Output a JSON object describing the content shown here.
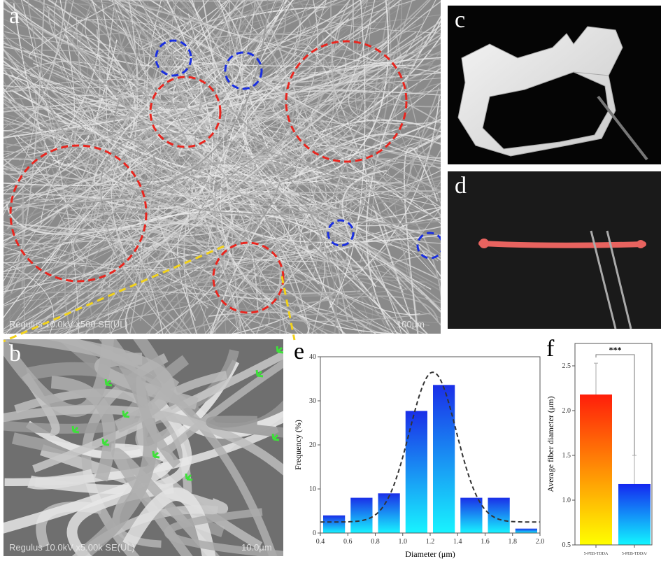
{
  "panels": {
    "a": {
      "label": "a",
      "footer": "Regulus 10.0kV x500 SE(UL)",
      "scale": "100μm"
    },
    "b": {
      "label": "b",
      "footer": "Regulus 10.0kV x5.00k SE(UL)",
      "scale": "10.0μm"
    },
    "c": {
      "label": "c"
    },
    "d": {
      "label": "d"
    },
    "e": {
      "label": "e"
    },
    "f": {
      "label": "f"
    }
  },
  "colors": {
    "red_circle": "#e8261f",
    "blue_circle": "#1a2fe0",
    "zoom_lines": "#f2d21b",
    "arrows": "#3ee03a"
  },
  "chart_data": [
    {
      "type": "bar",
      "panel": "e",
      "xlabel": "Diameter (μm)",
      "ylabel": "Frequency (%)",
      "bins": [
        [
          0.4,
          0.6
        ],
        [
          0.6,
          0.8
        ],
        [
          0.8,
          1.0
        ],
        [
          1.0,
          1.2
        ],
        [
          1.2,
          1.4
        ],
        [
          1.4,
          1.6
        ],
        [
          1.6,
          1.8
        ],
        [
          1.8,
          2.0
        ]
      ],
      "values": [
        4,
        8,
        9,
        27.7,
        33.6,
        8,
        8,
        1
      ],
      "fit": {
        "type": "gaussian",
        "center": 1.22,
        "peak": 36.5,
        "sigma": 0.17,
        "baseline": 2.5,
        "style": "dashed"
      },
      "xlim": [
        0.4,
        2.0
      ],
      "ylim": [
        0,
        40
      ],
      "xticks": [
        "0.4",
        "0.6",
        "0.8",
        "1.0",
        "1.2",
        "1.4",
        "1.6",
        "1.8",
        "2.0"
      ],
      "yticks": [
        "0",
        "10",
        "20",
        "30",
        "40"
      ],
      "bar_gradient": [
        "#1a2fe8",
        "#18f4ff"
      ]
    },
    {
      "type": "bar",
      "panel": "f",
      "ylabel": "Average fiber diameter (μm)",
      "categories": [
        "5-PEB-TDDA",
        "5-PEB-TDDA/"
      ],
      "values": [
        2.18,
        1.18
      ],
      "error_upper": [
        2.53,
        1.5
      ],
      "significance": "***",
      "ylim": [
        0.5,
        2.75
      ],
      "yticks": [
        "0.5",
        "1.0",
        "1.5",
        "2.0",
        "2.5"
      ],
      "bar_gradients": [
        [
          "#ff1e0a",
          "#ffff00"
        ],
        [
          "#1428f0",
          "#12f6ff"
        ]
      ]
    }
  ]
}
